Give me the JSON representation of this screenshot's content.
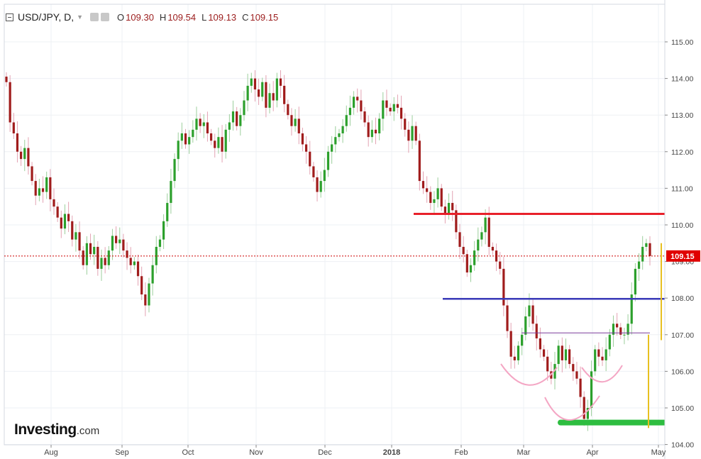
{
  "header": {
    "symbol": "USD/JPY, D,",
    "open_label": "O",
    "open": "109.30",
    "high_label": "H",
    "high": "109.54",
    "low_label": "L",
    "low": "109.13",
    "close_label": "C",
    "close": "109.15"
  },
  "brand": {
    "name": "Investing",
    "suffix": ".com"
  },
  "colors": {
    "up": "#2ca02c",
    "down": "#a01c1c",
    "resistance": "#e8202a",
    "support_mid": "#3a3ab8",
    "neckline": "#7a3a9a",
    "target": "#e8c020",
    "base": "#2ebd40",
    "pattern": "#f4a6c4",
    "price_line": "#cc0000"
  },
  "chart_data": {
    "type": "candlestick",
    "instrument": "USD/JPY",
    "interval": "D",
    "ylim": [
      104.0,
      115.5
    ],
    "y_ticks": [
      "104.00",
      "105.00",
      "106.00",
      "107.00",
      "108.00",
      "109.00",
      "110.00",
      "111.00",
      "112.00",
      "113.00",
      "114.00",
      "115.00"
    ],
    "x_ticks": [
      "Aug",
      "Sep",
      "Oct",
      "Nov",
      "Dec",
      "2018",
      "Feb",
      "Mar",
      "Apr",
      "May"
    ],
    "last_price": "109.15",
    "series": [
      {
        "name": "USD/JPY",
        "close": [
          113.9,
          112.8,
          112.5,
          112.0,
          111.8,
          112.1,
          111.6,
          111.2,
          110.8,
          111.0,
          110.9,
          111.3,
          110.7,
          110.5,
          110.2,
          109.9,
          110.3,
          110.1,
          109.6,
          109.8,
          109.3,
          108.9,
          109.5,
          109.2,
          109.4,
          108.8,
          109.1,
          108.9,
          109.3,
          109.7,
          109.5,
          109.6,
          109.3,
          109.1,
          108.9,
          109.0,
          108.6,
          108.1,
          107.8,
          108.4,
          108.9,
          109.4,
          109.6,
          110.1,
          110.6,
          111.2,
          111.8,
          112.3,
          112.5,
          112.2,
          112.4,
          112.6,
          112.9,
          112.7,
          112.8,
          112.5,
          112.3,
          112.1,
          112.4,
          112.0,
          112.6,
          112.8,
          113.1,
          112.7,
          113.0,
          113.4,
          113.8,
          114.0,
          113.7,
          113.5,
          113.9,
          113.2,
          113.6,
          113.4,
          114.0,
          113.8,
          113.3,
          113.0,
          112.7,
          112.9,
          112.5,
          112.2,
          112.0,
          111.6,
          111.3,
          110.9,
          111.2,
          111.5,
          112.0,
          112.2,
          112.4,
          112.5,
          112.7,
          113.0,
          113.2,
          113.5,
          113.4,
          113.1,
          112.8,
          112.4,
          112.6,
          112.5,
          112.9,
          113.4,
          113.2,
          113.1,
          113.3,
          113.2,
          112.9,
          112.6,
          112.3,
          112.7,
          112.3,
          111.2,
          111.0,
          110.9,
          110.6,
          110.7,
          111.0,
          110.5,
          110.3,
          110.6,
          110.4,
          109.8,
          109.4,
          109.2,
          108.7,
          108.9,
          109.3,
          109.6,
          109.8,
          110.2,
          109.4,
          109.3,
          109.0,
          108.8,
          107.8,
          107.1,
          106.4,
          106.3,
          106.7,
          107.0,
          107.5,
          107.8,
          107.3,
          106.9,
          106.6,
          106.4,
          106.0,
          105.8,
          106.2,
          106.7,
          106.3,
          106.6,
          106.2,
          106.0,
          105.8,
          105.3,
          104.7,
          105.0,
          106.0,
          106.6,
          106.4,
          106.3,
          106.6,
          107.0,
          107.3,
          107.2,
          107.0,
          107.0,
          107.3,
          108.1,
          108.8,
          109.0,
          109.4,
          109.5,
          109.15
        ]
      }
    ],
    "annotations": [
      {
        "label": "resistance",
        "y": 110.3
      },
      {
        "label": "support",
        "y": 107.98
      },
      {
        "label": "neckline",
        "y": 107.05
      },
      {
        "label": "base",
        "y": 104.6
      }
    ]
  }
}
